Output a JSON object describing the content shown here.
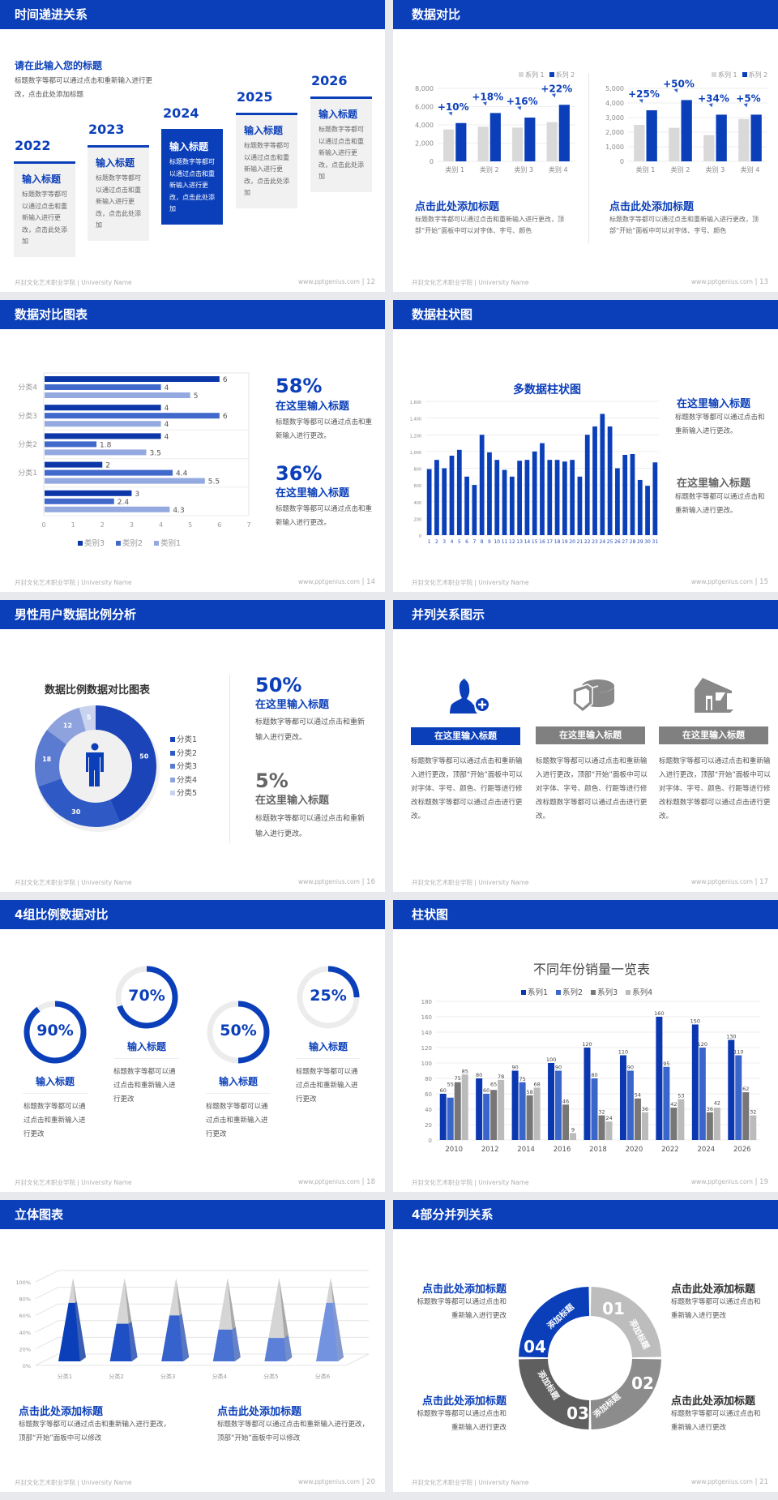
{
  "footer": {
    "school": "开封文化艺术职业学院 | University Name",
    "site": "www.pptgenius.com"
  },
  "colors": {
    "primary": "#0b3fb9",
    "light_gray": "#d9d9d9",
    "gray": "#8c8c8c",
    "dark_gray": "#5f5f5f"
  },
  "slide12": {
    "page": "12",
    "title": "时间递进关系",
    "subtitle": "请在此输入您的标题",
    "desc": "标题数字等都可以通过点击和重新输入进行更改，点击此处添加标题",
    "cards": [
      {
        "year": "2022",
        "heading": "输入标题",
        "text": "标题数字等都可以通过点击和重新输入进行更改，点击此处添加"
      },
      {
        "year": "2023",
        "heading": "输入标题",
        "text": "标题数字等都可以通过点击和重新输入进行更改，点击此处添加"
      },
      {
        "year": "2024",
        "heading": "输入标题",
        "text": "标题数字等都可以通过点击和重新输入进行更改，点击此处添加"
      },
      {
        "year": "2025",
        "heading": "输入标题",
        "text": "标题数字等都可以通过点击和重新输入进行更改，点击此处添加"
      },
      {
        "year": "2026",
        "heading": "输入标题",
        "text": "标题数字等都可以通过点击和重新输入进行更改，点击此处添加"
      }
    ]
  },
  "slide13": {
    "page": "13",
    "title": "数据对比",
    "sections": [
      {
        "heading": "点击此处添加标题",
        "text": "标题数字等都可以通过点击和重新输入进行更改，顶部“开始”面板中可以对字体、字号、颜色"
      },
      {
        "heading": "点击此处添加标题",
        "text": "标题数字等都可以通过点击和重新输入进行更改，顶部“开始”面板中可以对字体、字号、颜色"
      }
    ]
  },
  "slide14": {
    "page": "14",
    "title": "数据对比图表",
    "stats": [
      {
        "value": "58%",
        "heading": "在这里输入标题",
        "text": "标题数字等都可以通过点击和重新输入进行更改。"
      },
      {
        "value": "36%",
        "heading": "在这里输入标题",
        "text": "标题数字等都可以通过点击和重新输入进行更改。"
      }
    ]
  },
  "slide15": {
    "page": "15",
    "title": "数据柱状图",
    "items": [
      {
        "heading": "在这里输入标题",
        "text": "标题数字等都可以通过点击和重新输入进行更改。"
      },
      {
        "heading": "在这里输入标题",
        "text": "标题数字等都可以通过点击和重新输入进行更改。"
      }
    ]
  },
  "slide16": {
    "page": "16",
    "title": "男性用户数据比例分析",
    "icon": "male-user-icon",
    "stats": [
      {
        "value": "50%",
        "heading": "在这里输入标题",
        "text": "标题数字等都可以通过点击和重新输入进行更改。"
      },
      {
        "value": "5%",
        "heading": "在这里输入标题",
        "text": "标题数字等都可以通过点击和重新输入进行更改。"
      }
    ]
  },
  "slide17": {
    "page": "17",
    "title": "并列关系图示",
    "columns": [
      {
        "icon": "user-add-icon",
        "label": "在这里输入标题",
        "text": "标题数字等都可以通过点击和重新输入进行更改，顶部“开始”面板中可以对字体、字号、颜色、行距等进行修改标题数字等都可以通过点击进行更改。"
      },
      {
        "icon": "pie-chart-icon",
        "label": "在这里输入标题",
        "text": "标题数字等都可以通过点击和重新输入进行更改，顶部“开始”面板中可以对字体、字号、颜色、行距等进行修改标题数字等都可以通过点击进行更改。"
      },
      {
        "icon": "shop-icon",
        "label": "在这里输入标题",
        "text": "标题数字等都可以通过点击和重新输入进行更改，顶部“开始”面板中可以对字体、字号、颜色、行距等进行修改标题数字等都可以通过点击进行更改。"
      }
    ]
  },
  "slide18": {
    "page": "18",
    "title": "4组比例数据对比",
    "items": [
      {
        "percent": "90%",
        "value": 90,
        "heading": "输入标题",
        "text": "标题数字等都可以通过点击和重新输入进行更改"
      },
      {
        "percent": "70%",
        "value": 70,
        "heading": "输入标题",
        "text": "标题数字等都可以通过点击和重新输入进行更改"
      },
      {
        "percent": "50%",
        "value": 50,
        "heading": "输入标题",
        "text": "标题数字等都可以通过点击和重新输入进行更改"
      },
      {
        "percent": "25%",
        "value": 25,
        "heading": "输入标题",
        "text": "标题数字等都可以通过点击和重新输入进行更改"
      }
    ]
  },
  "slide19": {
    "page": "19",
    "title": "柱状图"
  },
  "slide20": {
    "page": "20",
    "title": "立体图表",
    "sections": [
      {
        "heading": "点击此处添加标题",
        "text": "标题数字等都可以通过点击和重新输入进行更改，顶部“开始”面板中可以修改"
      },
      {
        "heading": "点击此处添加标题",
        "text": "标题数字等都可以通过点击和重新输入进行更改，顶部“开始”面板中可以修改"
      }
    ]
  },
  "slide21": {
    "page": "21",
    "title": "4部分并列关系",
    "segments": [
      {
        "num": "01",
        "label": "添加标题"
      },
      {
        "num": "02",
        "label": "添加标题"
      },
      {
        "num": "03",
        "label": "添加标题"
      },
      {
        "num": "04",
        "label": "添加标题"
      }
    ],
    "blocks": [
      {
        "heading": "点击此处添加标题",
        "text": "标题数字等都可以通过点击和重新输入进行更改"
      },
      {
        "heading": "点击此处添加标题",
        "text": "标题数字等都可以通过点击和重新输入进行更改"
      },
      {
        "heading": "点击此处添加标题",
        "text": "标题数字等都可以通过点击和重新输入进行更改"
      },
      {
        "heading": "点击此处添加标题",
        "text": "标题数字等都可以通过点击和重新输入进行更改"
      }
    ]
  },
  "chart_data": [
    {
      "type": "bar",
      "categories": [
        "类别 1",
        "类别 2",
        "类别 3",
        "类别 4"
      ],
      "series": [
        {
          "name": "系列 1",
          "values": [
            3500,
            3800,
            3700,
            4300
          ]
        },
        {
          "name": "系列 2",
          "values": [
            4200,
            5300,
            4800,
            6200
          ]
        }
      ],
      "ylim": [
        0,
        8000
      ],
      "yticks": [
        "0",
        "2,000",
        "4,000",
        "6,000",
        "8,000"
      ],
      "annotations": [
        "+10%",
        "+18%",
        "+16%",
        "+22%"
      ],
      "legend": "top-right",
      "grid": true,
      "colors": [
        "#d9d9d9",
        "#0b3fb9"
      ]
    },
    {
      "type": "bar",
      "categories": [
        "类别 1",
        "类别 2",
        "类别 3",
        "类别 4"
      ],
      "series": [
        {
          "name": "系列 1",
          "values": [
            2500,
            2300,
            1800,
            2900
          ]
        },
        {
          "name": "系列 2",
          "values": [
            3500,
            4200,
            3200,
            3200
          ]
        }
      ],
      "ylim": [
        0,
        5000
      ],
      "yticks": [
        "0",
        "1,000",
        "2,000",
        "3,000",
        "4,000",
        "5,000"
      ],
      "annotations": [
        "+25%",
        "+50%",
        "+34%",
        "+5%"
      ],
      "legend": "top-right",
      "grid": true,
      "colors": [
        "#d9d9d9",
        "#0b3fb9"
      ]
    },
    {
      "type": "bar",
      "orientation": "horizontal",
      "categories": [
        "",
        "分类1",
        "分类2",
        "分类3",
        "分类4"
      ],
      "series": [
        {
          "name": "类别1",
          "values": [
            4.3,
            5.5,
            3.5,
            4,
            5
          ]
        },
        {
          "name": "类别2",
          "values": [
            2.4,
            4.4,
            1.8,
            6,
            4
          ]
        },
        {
          "name": "类别3",
          "values": [
            3,
            2,
            4,
            4,
            6
          ]
        }
      ],
      "xlim": [
        0,
        7
      ],
      "xticks": [
        "0",
        "1",
        "2",
        "3",
        "4",
        "5",
        "6",
        "7"
      ],
      "legend": "bottom",
      "colors": [
        "#94a9e0",
        "#4169cc",
        "#0b37a8"
      ]
    },
    {
      "type": "bar",
      "title": "多数据柱状图",
      "categories": [
        "1",
        "2",
        "3",
        "4",
        "5",
        "6",
        "7",
        "8",
        "9",
        "10",
        "11",
        "12",
        "13",
        "14",
        "15",
        "16",
        "17",
        "18",
        "19",
        "20",
        "21",
        "22",
        "23",
        "24",
        "25",
        "26",
        "27",
        "28",
        "29",
        "30",
        "31"
      ],
      "values": [
        790,
        900,
        800,
        950,
        1020,
        700,
        600,
        1200,
        990,
        900,
        780,
        700,
        890,
        900,
        1000,
        1100,
        900,
        900,
        880,
        900,
        700,
        1200,
        1300,
        1450,
        1300,
        800,
        960,
        970,
        660,
        590,
        870
      ],
      "ylim": [
        0,
        1600
      ],
      "yticks": [
        "0",
        "200",
        "400",
        "600",
        "800",
        "1,000",
        "1,200",
        "1,400",
        "1,600"
      ],
      "grid": true,
      "colors": [
        "#0b3fb9"
      ]
    },
    {
      "type": "pie",
      "variant": "donut",
      "title": "数据比例数据对比图表",
      "categories": [
        "分类1",
        "分类2",
        "分类3",
        "分类4",
        "分类5"
      ],
      "values": [
        50,
        30,
        18,
        12,
        5
      ],
      "legend": "right",
      "colors": [
        "#1a44b8",
        "#2f59c4",
        "#5b7bd0",
        "#8ea2de",
        "#c9d3ef"
      ]
    },
    {
      "type": "bar",
      "title": "不同年份销量一览表",
      "categories": [
        "2010",
        "2012",
        "2014",
        "2016",
        "2018",
        "2020",
        "2022",
        "2024",
        "2026"
      ],
      "series": [
        {
          "name": "系列1",
          "values": [
            60,
            80,
            90,
            100,
            120,
            110,
            160,
            150,
            130
          ]
        },
        {
          "name": "系列2",
          "values": [
            55,
            60,
            75,
            90,
            80,
            90,
            95,
            120,
            110
          ]
        },
        {
          "name": "系列3",
          "values": [
            75,
            65,
            58,
            46,
            32,
            54,
            42,
            36,
            62
          ]
        },
        {
          "name": "系列4",
          "values": [
            85,
            78,
            68,
            9,
            24,
            36,
            53,
            42,
            32
          ]
        }
      ],
      "ylim": [
        0,
        180
      ],
      "yticks": [
        "0",
        "20",
        "40",
        "60",
        "80",
        "100",
        "120",
        "140",
        "160",
        "180"
      ],
      "legend": "top",
      "grid": true,
      "colors": [
        "#0b37b0",
        "#3a66cc",
        "#777777",
        "#bbbbbb"
      ]
    },
    {
      "type": "bar",
      "variant": "3d-pyramid",
      "categories": [
        "分类1",
        "分类2",
        "分类3",
        "分类4",
        "分类5",
        "分类6"
      ],
      "values": [
        70,
        45,
        55,
        38,
        28,
        70
      ],
      "ylim": [
        0,
        100
      ],
      "yticks": [
        "0%",
        "20%",
        "40%",
        "60%",
        "80%",
        "100%"
      ],
      "grid": true
    }
  ]
}
